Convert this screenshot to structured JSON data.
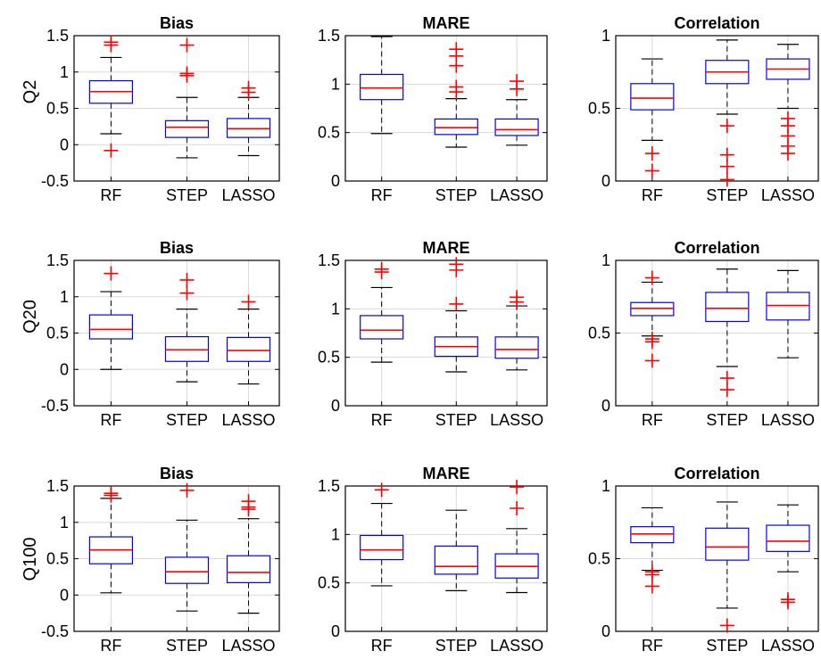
{
  "figure": {
    "row_labels": [
      "Q2",
      "Q20",
      "Q100"
    ],
    "colors": {
      "box": "#0000ff",
      "median": "#ff0000",
      "outlier": "#ff0000",
      "whisker": "#000000",
      "grid": "#d9d9d9",
      "axes": "#000000"
    }
  },
  "chart_data": [
    {
      "type": "box",
      "row": "Q2",
      "title": "Bias",
      "categories": [
        "RF",
        "STEP",
        "LASSO"
      ],
      "ylim": [
        -0.5,
        1.5
      ],
      "yticks": [
        "-0.5",
        "0",
        "0.5",
        "1",
        "1.5"
      ],
      "grid": true,
      "boxes": [
        {
          "whisker_low": 0.15,
          "q1": 0.57,
          "median": 0.73,
          "q3": 0.88,
          "whisker_high": 1.2,
          "outliers": [
            -0.08,
            1.37,
            1.41
          ]
        },
        {
          "whisker_low": -0.18,
          "q1": 0.1,
          "median": 0.24,
          "q3": 0.33,
          "whisker_high": 0.65,
          "outliers": [
            0.95,
            0.98,
            1.37
          ]
        },
        {
          "whisker_low": -0.15,
          "q1": 0.1,
          "median": 0.22,
          "q3": 0.36,
          "whisker_high": 0.65,
          "outliers": [
            0.72,
            0.78
          ]
        }
      ]
    },
    {
      "type": "box",
      "row": "Q2",
      "title": "MARE",
      "categories": [
        "RF",
        "STEP",
        "LASSO"
      ],
      "ylim": [
        0,
        1.5
      ],
      "yticks": [
        "0",
        "0.5",
        "1",
        "1.5"
      ],
      "grid": true,
      "boxes": [
        {
          "whisker_low": 0.49,
          "q1": 0.84,
          "median": 0.96,
          "q3": 1.1,
          "whisker_high": 1.49,
          "outliers": []
        },
        {
          "whisker_low": 0.35,
          "q1": 0.48,
          "median": 0.55,
          "q3": 0.64,
          "whisker_high": 0.85,
          "outliers": [
            0.92,
            0.97,
            1.19,
            1.29,
            1.36
          ]
        },
        {
          "whisker_low": 0.37,
          "q1": 0.47,
          "median": 0.53,
          "q3": 0.64,
          "whisker_high": 0.84,
          "outliers": [
            0.95,
            1.03
          ]
        }
      ]
    },
    {
      "type": "box",
      "row": "Q2",
      "title": "Correlation",
      "categories": [
        "RF",
        "STEP",
        "LASSO"
      ],
      "ylim": [
        0,
        1
      ],
      "yticks": [
        "0",
        "0.5",
        "1"
      ],
      "grid": true,
      "boxes": [
        {
          "whisker_low": 0.28,
          "q1": 0.49,
          "median": 0.57,
          "q3": 0.67,
          "whisker_high": 0.84,
          "outliers": [
            0.07,
            0.19
          ]
        },
        {
          "whisker_low": 0.46,
          "q1": 0.67,
          "median": 0.75,
          "q3": 0.83,
          "whisker_high": 0.97,
          "outliers": [
            0.01,
            0.1,
            0.18,
            0.38
          ]
        },
        {
          "whisker_low": 0.5,
          "q1": 0.7,
          "median": 0.77,
          "q3": 0.84,
          "whisker_high": 0.94,
          "outliers": [
            0.19,
            0.24,
            0.31,
            0.38,
            0.43
          ]
        }
      ]
    },
    {
      "type": "box",
      "row": "Q20",
      "title": "Bias",
      "categories": [
        "RF",
        "STEP",
        "LASSO"
      ],
      "ylim": [
        -0.5,
        1.5
      ],
      "yticks": [
        "-0.5",
        "0",
        "0.5",
        "1",
        "1.5"
      ],
      "grid": true,
      "boxes": [
        {
          "whisker_low": 0.0,
          "q1": 0.42,
          "median": 0.55,
          "q3": 0.75,
          "whisker_high": 1.07,
          "outliers": [
            1.32
          ]
        },
        {
          "whisker_low": -0.17,
          "q1": 0.11,
          "median": 0.27,
          "q3": 0.45,
          "whisker_high": 0.83,
          "outliers": [
            1.05,
            1.23
          ]
        },
        {
          "whisker_low": -0.2,
          "q1": 0.11,
          "median": 0.26,
          "q3": 0.44,
          "whisker_high": 0.83,
          "outliers": [
            0.93
          ]
        }
      ]
    },
    {
      "type": "box",
      "row": "Q20",
      "title": "MARE",
      "categories": [
        "RF",
        "STEP",
        "LASSO"
      ],
      "ylim": [
        0,
        1.5
      ],
      "yticks": [
        "0",
        "0.5",
        "1",
        "1.5"
      ],
      "grid": true,
      "boxes": [
        {
          "whisker_low": 0.45,
          "q1": 0.69,
          "median": 0.78,
          "q3": 0.93,
          "whisker_high": 1.22,
          "outliers": [
            1.38,
            1.41
          ]
        },
        {
          "whisker_low": 0.35,
          "q1": 0.51,
          "median": 0.61,
          "q3": 0.71,
          "whisker_high": 0.98,
          "outliers": [
            1.05,
            1.4,
            1.46
          ]
        },
        {
          "whisker_low": 0.37,
          "q1": 0.49,
          "median": 0.58,
          "q3": 0.71,
          "whisker_high": 1.03,
          "outliers": [
            1.07,
            1.12
          ]
        }
      ]
    },
    {
      "type": "box",
      "row": "Q20",
      "title": "Correlation",
      "categories": [
        "RF",
        "STEP",
        "LASSO"
      ],
      "ylim": [
        0,
        1
      ],
      "yticks": [
        "0",
        "0.5",
        "1"
      ],
      "grid": true,
      "boxes": [
        {
          "whisker_low": 0.48,
          "q1": 0.62,
          "median": 0.67,
          "q3": 0.71,
          "whisker_high": 0.85,
          "outliers": [
            0.31,
            0.44,
            0.46,
            0.88
          ]
        },
        {
          "whisker_low": 0.27,
          "q1": 0.58,
          "median": 0.67,
          "q3": 0.78,
          "whisker_high": 0.94,
          "outliers": [
            0.11,
            0.19
          ]
        },
        {
          "whisker_low": 0.33,
          "q1": 0.59,
          "median": 0.69,
          "q3": 0.78,
          "whisker_high": 0.93,
          "outliers": []
        }
      ]
    },
    {
      "type": "box",
      "row": "Q100",
      "title": "Bias",
      "categories": [
        "RF",
        "STEP",
        "LASSO"
      ],
      "ylim": [
        -0.5,
        1.5
      ],
      "yticks": [
        "-0.5",
        "0",
        "0.5",
        "1",
        "1.5"
      ],
      "grid": true,
      "boxes": [
        {
          "whisker_low": 0.03,
          "q1": 0.43,
          "median": 0.62,
          "q3": 0.8,
          "whisker_high": 1.33,
          "outliers": [
            1.37,
            1.4
          ]
        },
        {
          "whisker_low": -0.22,
          "q1": 0.16,
          "median": 0.32,
          "q3": 0.52,
          "whisker_high": 1.03,
          "outliers": [
            1.44
          ]
        },
        {
          "whisker_low": -0.25,
          "q1": 0.17,
          "median": 0.31,
          "q3": 0.54,
          "whisker_high": 1.05,
          "outliers": [
            1.18,
            1.21,
            1.29
          ]
        }
      ]
    },
    {
      "type": "box",
      "row": "Q100",
      "title": "MARE",
      "categories": [
        "RF",
        "STEP",
        "LASSO"
      ],
      "ylim": [
        0,
        1.5
      ],
      "yticks": [
        "0",
        "0.5",
        "1",
        "1.5"
      ],
      "grid": true,
      "boxes": [
        {
          "whisker_low": 0.47,
          "q1": 0.74,
          "median": 0.84,
          "q3": 0.99,
          "whisker_high": 1.32,
          "outliers": [
            1.46
          ]
        },
        {
          "whisker_low": 0.42,
          "q1": 0.59,
          "median": 0.67,
          "q3": 0.88,
          "whisker_high": 1.25,
          "outliers": []
        },
        {
          "whisker_low": 0.4,
          "q1": 0.55,
          "median": 0.67,
          "q3": 0.8,
          "whisker_high": 1.06,
          "outliers": [
            1.27,
            1.49
          ]
        }
      ]
    },
    {
      "type": "box",
      "row": "Q100",
      "title": "Correlation",
      "categories": [
        "RF",
        "STEP",
        "LASSO"
      ],
      "ylim": [
        0,
        1
      ],
      "yticks": [
        "0",
        "0.5",
        "1"
      ],
      "grid": true,
      "boxes": [
        {
          "whisker_low": 0.42,
          "q1": 0.61,
          "median": 0.67,
          "q3": 0.72,
          "whisker_high": 0.85,
          "outliers": [
            0.31,
            0.39,
            0.41
          ]
        },
        {
          "whisker_low": 0.16,
          "q1": 0.49,
          "median": 0.58,
          "q3": 0.71,
          "whisker_high": 0.89,
          "outliers": [
            0.04
          ]
        },
        {
          "whisker_low": 0.41,
          "q1": 0.55,
          "median": 0.62,
          "q3": 0.73,
          "whisker_high": 0.87,
          "outliers": [
            0.2,
            0.22
          ]
        }
      ]
    }
  ]
}
